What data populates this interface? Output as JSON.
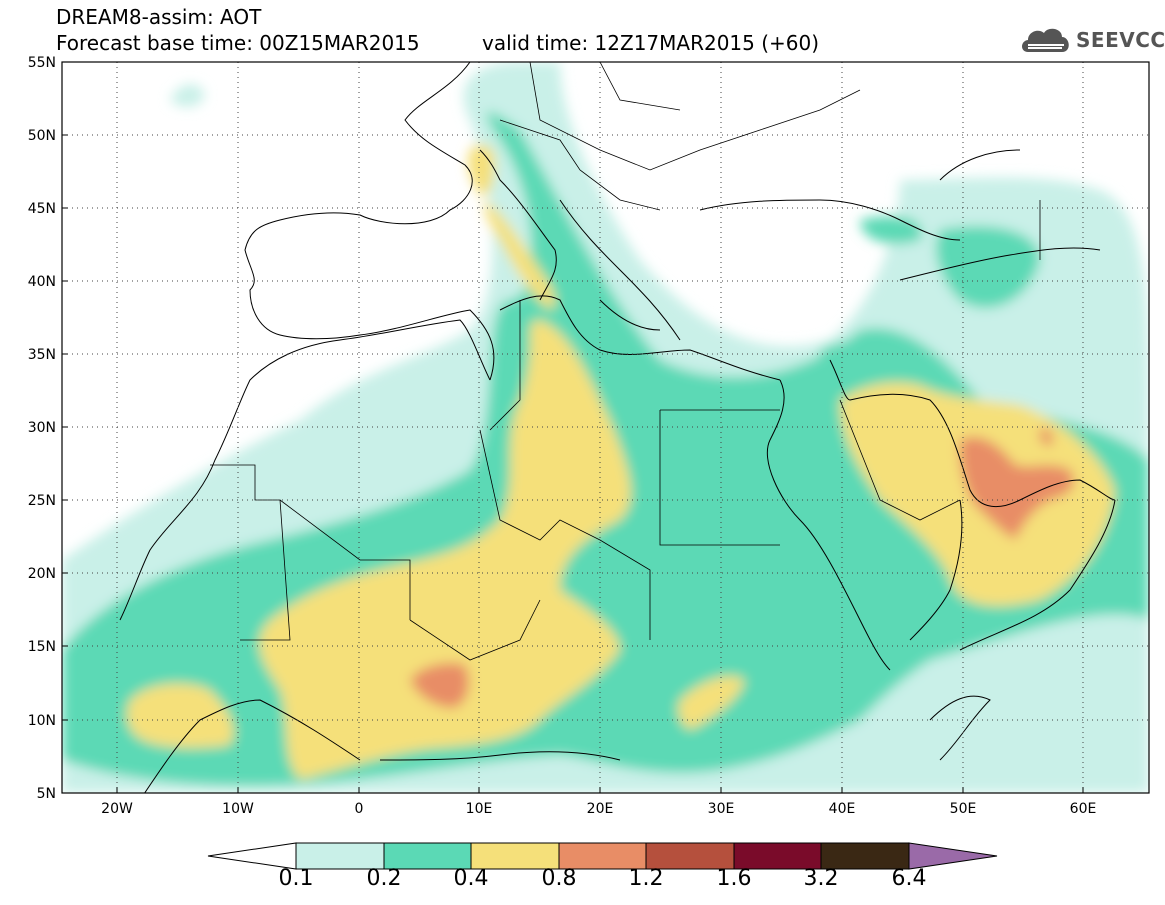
{
  "header": {
    "title": "DREAM8-assim: AOT",
    "base_time": "Forecast base time: 00Z15MAR2015",
    "valid_time": "valid time: 12Z17MAR2015 (+60)"
  },
  "logo": {
    "text": "SEEVCCC",
    "icon": "cloud-icon"
  },
  "map": {
    "lon_range": [
      -25,
      65
    ],
    "lat_range": [
      5,
      55
    ],
    "lat_ticks": [
      "55N",
      "50N",
      "45N",
      "40N",
      "35N",
      "30N",
      "25N",
      "20N",
      "15N",
      "10N",
      "5N"
    ],
    "lon_ticks": [
      "20W",
      "10W",
      "0",
      "10E",
      "20E",
      "30E",
      "40E",
      "50E",
      "60E"
    ],
    "grid": "dotted"
  },
  "colorbar": {
    "labels": [
      "0.1",
      "0.2",
      "0.4",
      "0.8",
      "1.2",
      "1.6",
      "3.2",
      "6.4"
    ],
    "colors": [
      "#c9f0e8",
      "#5bd9b5",
      "#f5e07a",
      "#e88d66",
      "#b5503d",
      "#7a0b2a",
      "#3a2814"
    ],
    "under_color": "#ffffff",
    "over_color": "#9a6aa8"
  }
}
